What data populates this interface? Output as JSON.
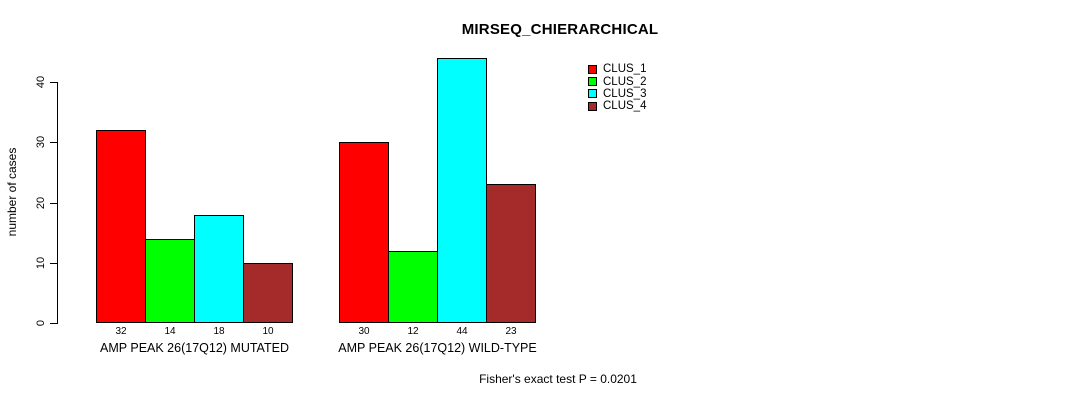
{
  "chart_data": {
    "type": "bar",
    "title": "MIRSEQ_CHIERARCHICAL",
    "ylabel": "number of cases",
    "xlabel": "",
    "ylim": [
      0,
      44
    ],
    "yticks": [
      0,
      10,
      20,
      30,
      40
    ],
    "grid": false,
    "legend_position": "top-right",
    "categories": [
      "AMP PEAK 26(17Q12) MUTATED",
      "AMP PEAK 26(17Q12) WILD-TYPE"
    ],
    "series": [
      {
        "name": "CLUS_1",
        "color": "#FF0000",
        "values": [
          32,
          30
        ]
      },
      {
        "name": "CLUS_2",
        "color": "#00FF00",
        "values": [
          14,
          12
        ]
      },
      {
        "name": "CLUS_3",
        "color": "#00FFFF",
        "values": [
          18,
          44
        ]
      },
      {
        "name": "CLUS_4",
        "color": "#A52A2A",
        "values": [
          10,
          23
        ]
      }
    ],
    "bar_value_labels": [
      [
        32,
        14,
        18,
        10
      ],
      [
        30,
        12,
        44,
        23
      ]
    ],
    "annotation": "Fisher's exact test P = 0.0201"
  },
  "colors": {
    "background": "#FFFFFF",
    "axis": "#000000",
    "text": "#000000"
  }
}
